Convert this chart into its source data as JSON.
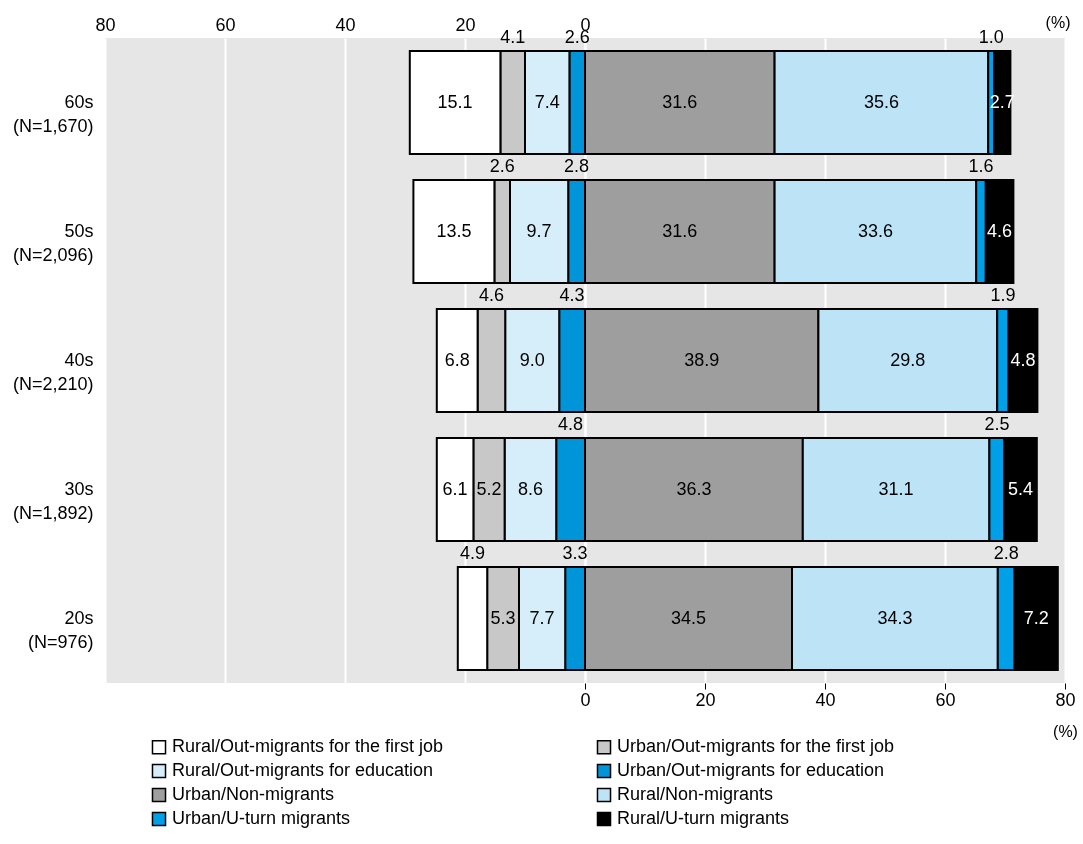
{
  "chart_data": {
    "type": "bar",
    "orientation": "horizontal",
    "categories": [
      "60s\n(N=1,670)",
      "50s\n(N=2,096)",
      "40s\n(N=2,210)",
      "30s\n(N=1,892)",
      "20s\n(N=976)"
    ],
    "series": [
      {
        "name": "Urban/Out-migrants for education",
        "color": "#0095d9",
        "values": [
          2.6,
          2.8,
          4.3,
          4.8,
          3.3
        ],
        "base": [
          -2.6,
          -2.8,
          -4.3,
          -4.8,
          -3.3
        ]
      },
      {
        "name": "Rural/Out-migrants for education",
        "color": "#d6edfa",
        "values": [
          7.4,
          9.7,
          9.0,
          8.6,
          7.7
        ],
        "value_labels": [
          "7.4",
          "9.7",
          "9.0",
          "8.6",
          "7.7"
        ],
        "base": [
          -10.0,
          -12.5,
          -13.3,
          -13.4,
          -11.0
        ]
      },
      {
        "name": "Urban/Out-migrants for the first job",
        "color": "#c8c8c8",
        "values": [
          4.1,
          2.6,
          4.6,
          5.2,
          5.3
        ],
        "base": [
          -14.1,
          -15.1,
          -17.9,
          -18.6,
          -16.3
        ]
      },
      {
        "name": "Rural/Out-migrants for the first job",
        "color": "#ffffff",
        "values": [
          15.1,
          13.5,
          6.8,
          6.1,
          4.9
        ],
        "base": [
          -29.2,
          -28.6,
          -24.7,
          -24.7,
          -21.2
        ]
      },
      {
        "name": "Urban/Non-migrants",
        "color": "#9e9e9e",
        "values": [
          31.6,
          31.6,
          38.9,
          36.3,
          34.5
        ],
        "base": [
          0,
          0,
          0,
          0,
          0
        ]
      },
      {
        "name": "Rural/Non-migrants",
        "color": "#bde3f7",
        "values": [
          35.6,
          33.6,
          29.8,
          31.1,
          34.3
        ],
        "base": [
          31.6,
          31.6,
          38.9,
          36.3,
          34.5
        ]
      },
      {
        "name": "Urban/U-turn migrants",
        "color": "#00a0e9",
        "values": [
          1.0,
          1.6,
          1.9,
          2.5,
          2.8
        ],
        "value_labels": [
          "1.0",
          "1.6",
          "1.9",
          "2.5",
          "2.8"
        ],
        "base": [
          67.2,
          65.2,
          68.7,
          67.4,
          68.8
        ]
      },
      {
        "name": "Rural/U-turn migrants",
        "color": "#000000",
        "values": [
          2.7,
          4.6,
          4.8,
          5.4,
          7.2
        ],
        "base": [
          68.2,
          66.8,
          70.6,
          69.9,
          71.6
        ]
      }
    ],
    "data_labels": true,
    "xlim": [
      -80,
      80
    ],
    "xticks": [
      0,
      20,
      40,
      60,
      80
    ],
    "xlabel": "(%)",
    "x2lim": [
      -80,
      80
    ],
    "x2ticks": [
      {
        "value": -80,
        "label": "80"
      },
      {
        "value": -60,
        "label": "60"
      },
      {
        "value": -40,
        "label": "40"
      },
      {
        "value": -20,
        "label": "20"
      },
      0
    ],
    "x2label": "(%)",
    "grid": "x",
    "legend": "bottom"
  }
}
